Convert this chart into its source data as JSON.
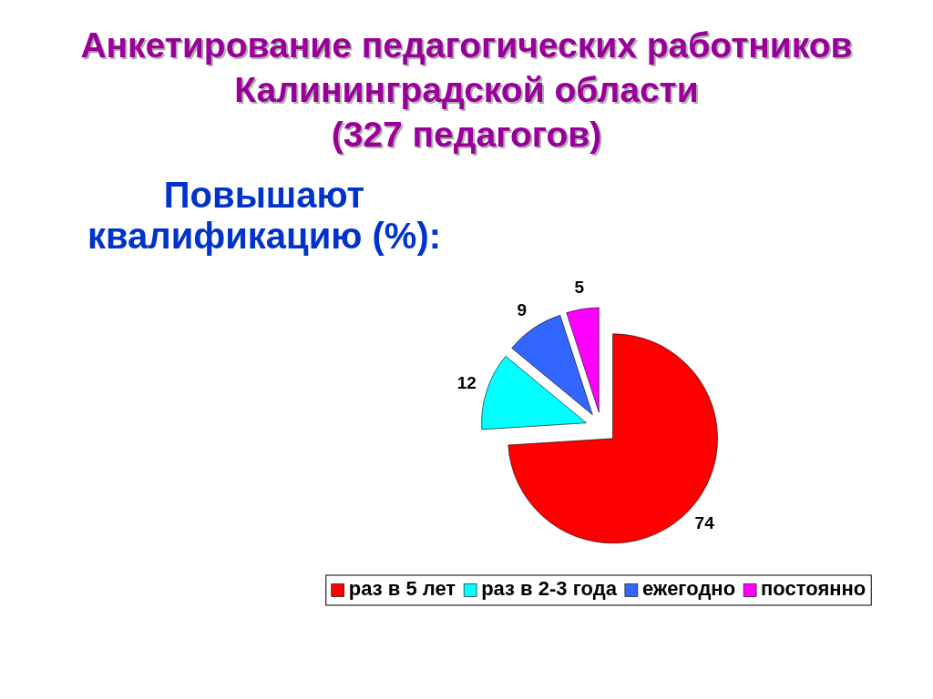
{
  "chart_data": {
    "type": "pie",
    "title": "Анкетирование педагогических работников\nКалининградской области\n(327 педагогов)",
    "subtitle": "Повышают\nквалификацию (%):",
    "categories": [
      "раз в 5 лет",
      "раз в 2-3 года",
      "ежегодно",
      "постоянно"
    ],
    "values": [
      74,
      12,
      9,
      5
    ],
    "colors": [
      "#ff0000",
      "#00ffff",
      "#3366ff",
      "#ff00ff"
    ],
    "data_labels": true,
    "legend": "bottom"
  }
}
